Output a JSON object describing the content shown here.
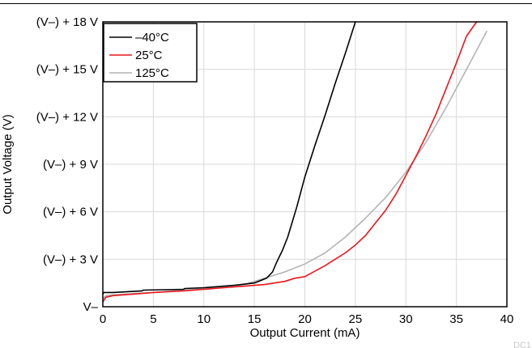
{
  "chart_data": {
    "type": "line",
    "xlabel": "Output Current (mA)",
    "ylabel": "Output Voltage (V)",
    "xlim": [
      0,
      40
    ],
    "ylim": [
      0,
      18
    ],
    "x_ticks": [
      0,
      5,
      10,
      15,
      20,
      25,
      30,
      35,
      40
    ],
    "y_ticks": [
      0,
      3,
      6,
      9,
      12,
      15,
      18
    ],
    "y_tick_labels": [
      "V–",
      "(V–) + 3 V",
      "(V–) + 6 V",
      "(V–) + 9 V",
      "(V–) + 12 V",
      "(V–) + 15 V",
      "(V–) + 18 V"
    ],
    "grid": true,
    "legend_position": "top-left",
    "series": [
      {
        "name": "–40°C",
        "color": "#000000",
        "x": [
          0,
          0.1,
          1,
          3.9,
          4,
          8,
          8.1,
          10,
          13,
          15,
          16.2,
          16.8,
          17.2,
          17.8,
          18.3,
          19.2,
          20,
          21,
          22,
          23,
          24,
          25
        ],
        "y": [
          0.8,
          0.9,
          0.9,
          1.0,
          1.05,
          1.1,
          1.15,
          1.2,
          1.35,
          1.5,
          1.8,
          2.2,
          2.8,
          3.6,
          4.4,
          6.3,
          8.2,
          10.2,
          12.1,
          14.1,
          16.0,
          18.0
        ]
      },
      {
        "name": "25°C",
        "color": "#e8161b",
        "x": [
          0,
          0.3,
          1,
          3,
          5,
          8,
          10,
          12,
          14,
          16,
          18,
          19,
          20,
          22,
          24,
          25,
          26,
          27,
          28,
          29,
          30,
          31,
          32,
          33,
          34,
          35,
          36,
          37
        ],
        "y": [
          0.3,
          0.6,
          0.7,
          0.8,
          0.9,
          1.0,
          1.1,
          1.2,
          1.3,
          1.4,
          1.6,
          1.8,
          1.9,
          2.6,
          3.4,
          3.9,
          4.5,
          5.3,
          6.1,
          7.1,
          8.3,
          9.5,
          10.8,
          12.2,
          13.8,
          15.4,
          17.1,
          18.0
        ]
      },
      {
        "name": "125°C",
        "color": "#b4b4b4",
        "x": [
          0,
          0.3,
          1,
          5,
          10,
          14,
          16,
          18,
          20,
          22,
          24,
          26,
          28,
          30,
          32,
          34,
          36,
          37,
          38
        ],
        "y": [
          0.5,
          0.7,
          0.75,
          0.9,
          1.15,
          1.4,
          1.8,
          2.2,
          2.7,
          3.4,
          4.4,
          5.6,
          6.9,
          8.5,
          10.4,
          12.6,
          15.0,
          16.2,
          17.4
        ]
      }
    ]
  },
  "watermark_text": "DC1-"
}
